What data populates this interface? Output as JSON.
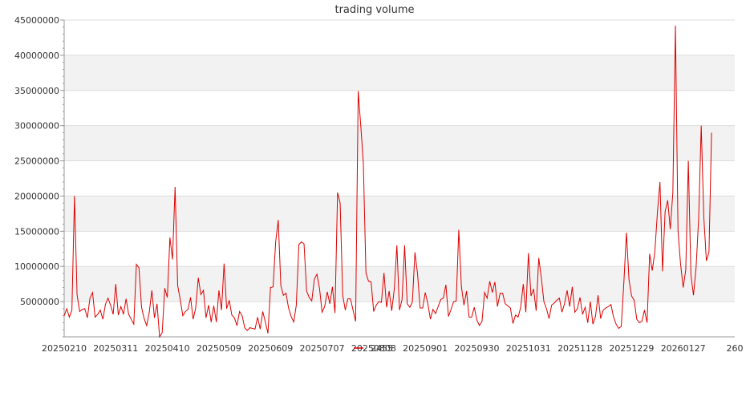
{
  "chart_data": {
    "type": "line",
    "title": "trading volume",
    "xlabel": "",
    "ylabel": "",
    "x_tick_labels": [
      "20250210",
      "20250311",
      "20250410",
      "20250509",
      "20250609",
      "20250707",
      "20250808",
      "20250901",
      "20250930",
      "20251031",
      "20251128",
      "20251229",
      "20260127",
      "260"
    ],
    "y_ticks": [
      5000000,
      10000000,
      15000000,
      20000000,
      25000000,
      30000000,
      35000000,
      40000000,
      45000000
    ],
    "y_tick_labels": [
      "5000000",
      "10000000",
      "15000000",
      "20000000",
      "25000000",
      "30000000",
      "35000000",
      "40000000",
      "45000000"
    ],
    "ylim": [
      0,
      45000000
    ],
    "xlim": [
      0,
      260
    ],
    "grid": "horizontal, alternating bands",
    "legend": {
      "placement": "bottom-center"
    },
    "series": [
      {
        "name": "2455",
        "color": "#dd0000",
        "values": [
          3000000,
          4000000,
          2800000,
          3800000,
          20000000,
          6000000,
          3600000,
          3900000,
          4000000,
          2700000,
          5500000,
          6300000,
          2800000,
          3200000,
          3800000,
          2500000,
          4600000,
          5500000,
          4500000,
          3200000,
          7500000,
          3100000,
          4300000,
          3200000,
          5400000,
          3200000,
          2500000,
          1800000,
          10300000,
          9800000,
          4200000,
          2600000,
          1600000,
          3500000,
          6600000,
          2700000,
          4700000,
          0,
          600000,
          6900000,
          5600000,
          14100000,
          11000000,
          21300000,
          7300000,
          5300000,
          3000000,
          3600000,
          3900000,
          5600000,
          2500000,
          4100000,
          8400000,
          6000000,
          6600000,
          2700000,
          4500000,
          2100000,
          4400000,
          2100000,
          6600000,
          3800000,
          10400000,
          4000000,
          5200000,
          3100000,
          2700000,
          1600000,
          3600000,
          3000000,
          1300000,
          900000,
          1300000,
          1200000,
          1100000,
          2800000,
          1100000,
          3600000,
          2100000,
          500000,
          7000000,
          7100000,
          13500000,
          16600000,
          7300000,
          5900000,
          6200000,
          4100000,
          2900000,
          2100000,
          4500000,
          13100000,
          13500000,
          13200000,
          6500000,
          5600000,
          5100000,
          8200000,
          8900000,
          6900000,
          3500000,
          4300000,
          6400000,
          4700000,
          7100000,
          3400000,
          20500000,
          19000000,
          5900000,
          3800000,
          5400000,
          5400000,
          3800000,
          2200000,
          34900000,
          30000000,
          24600000,
          9100000,
          7900000,
          7800000,
          3600000,
          4500000,
          5000000,
          4900000,
          9100000,
          4200000,
          6500000,
          3700000,
          6800000,
          13000000,
          3800000,
          5300000,
          13000000,
          4700000,
          4200000,
          4900000,
          12000000,
          9000000,
          4100000,
          4100000,
          6300000,
          4700000,
          2500000,
          3900000,
          3300000,
          4300000,
          5300000,
          5500000,
          7400000,
          2900000,
          3900000,
          5000000,
          5100000,
          15200000,
          7200000,
          4500000,
          6500000,
          2800000,
          2800000,
          4200000,
          2400000,
          1600000,
          2200000,
          6300000,
          5500000,
          7900000,
          6300000,
          7800000,
          4300000,
          6200000,
          6200000,
          4700000,
          4400000,
          4100000,
          1900000,
          3100000,
          2800000,
          4200000,
          7500000,
          3500000,
          11900000,
          5800000,
          6800000,
          3700000,
          11200000,
          8400000,
          5000000,
          4000000,
          2600000,
          4500000,
          4800000,
          5200000,
          5500000,
          3500000,
          4700000,
          6600000,
          4300000,
          7100000,
          3500000,
          4000000,
          5600000,
          3200000,
          4200000,
          2000000,
          5000000,
          1800000,
          2900000,
          5900000,
          2600000,
          3800000,
          4100000,
          4300000,
          4600000,
          2800000,
          1800000,
          1200000,
          1500000,
          7700000,
          14800000,
          8100000,
          5800000,
          5200000,
          2500000,
          2000000,
          2200000,
          3800000,
          2000000,
          11800000,
          9400000,
          12000000,
          17600000,
          22000000,
          9300000,
          17800000,
          19400000,
          15300000,
          20500000,
          44200000,
          15000000,
          10300000,
          7000000,
          9500000,
          25000000,
          8800000,
          5900000,
          9800000,
          16800000,
          30000000,
          17000000,
          10800000,
          12000000,
          29000000
        ]
      }
    ]
  }
}
